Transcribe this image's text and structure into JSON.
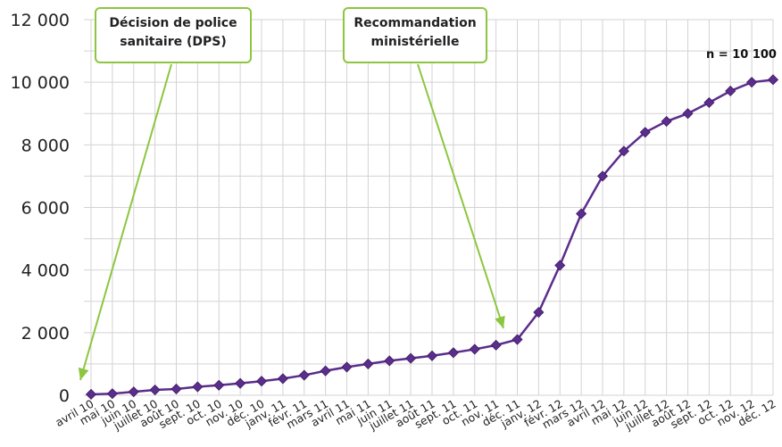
{
  "chart_data": {
    "type": "line",
    "title": "",
    "xlabel": "",
    "ylabel": "",
    "ylim": [
      0,
      12000
    ],
    "yticks": [
      0,
      2000,
      4000,
      6000,
      8000,
      10000,
      12000
    ],
    "ytick_labels": [
      "0",
      "2 000",
      "4 000",
      "6 000",
      "8 000",
      "10 000",
      "12 000"
    ],
    "grid": true,
    "categories": [
      "avril 10",
      "mai 10",
      "juin 10",
      "juillet 10",
      "août 10",
      "sept. 10",
      "oct. 10",
      "nov. 10",
      "déc. 10",
      "janv. 11",
      "févr. 11",
      "mars 11",
      "avril 11",
      "mai 11",
      "juin 11",
      "juillet 11",
      "août 11",
      "sept. 11",
      "oct. 11",
      "nov. 11",
      "déc. 11",
      "janv. 12",
      "févr. 12",
      "mars 12",
      "avril 12",
      "mai 12",
      "juin 12",
      "juillet 12",
      "août 12",
      "sept. 12",
      "oct. 12",
      "nov. 12",
      "déc. 12"
    ],
    "series": [
      {
        "values": [
          30,
          50,
          110,
          170,
          200,
          270,
          320,
          380,
          450,
          530,
          640,
          780,
          900,
          1000,
          1100,
          1180,
          1260,
          1360,
          1470,
          1600,
          1780,
          2650,
          4150,
          5800,
          7000,
          7800,
          8400,
          8750,
          9000,
          9350,
          9720,
          10000,
          10080
        ],
        "color": "#5b2d8c"
      }
    ],
    "annotations": [
      {
        "text": "Décision de police sanitaire (DPS)",
        "points_to": "avril 10"
      },
      {
        "text": "Recommandation ministérielle",
        "points_to": "nov. 11"
      }
    ],
    "note": "n = 10 100"
  },
  "colors": {
    "line": "#5b2d8c",
    "marker": "#5b2d8c",
    "callout_border": "#8cc63f",
    "arrow": "#8cc63f",
    "grid": "#d3d3d3"
  }
}
